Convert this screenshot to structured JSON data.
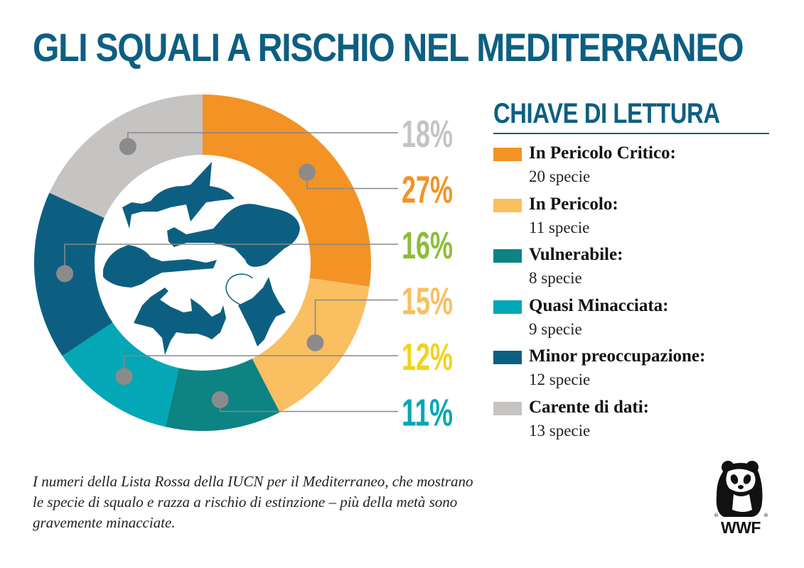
{
  "title": "GLI SQUALI A RISCHIO NEL MEDITERRANEO",
  "legend_title": "CHIAVE DI LETTURA",
  "legend": [
    {
      "label": "In Pericolo Critico:",
      "count": "20 specie",
      "color": "#f39325"
    },
    {
      "label": "In Pericolo:",
      "count": "11 specie",
      "color": "#f9bf60"
    },
    {
      "label": "Vulnerabile:",
      "count": "8 specie",
      "color": "#0d8383"
    },
    {
      "label": "Quasi Minacciata:",
      "count": "9 specie",
      "color": "#04a7b5"
    },
    {
      "label": "Minor preoccupazione:",
      "count": "12 specie",
      "color": "#0d5f82"
    },
    {
      "label": "Carente di dati:",
      "count": "13 specie",
      "color": "#c6c3c3"
    }
  ],
  "caption_lines": [
    "I numeri della Lista Rossa della IUCN per il Mediterraneo, che mostrano",
    "le specie di squalo e razza a rischio di estinzione – più della metà sono",
    "gravemente minacciate."
  ],
  "logo_text": "WWF",
  "colors": {
    "title": "#0d5f82",
    "leader": "#888888",
    "marker": "#8c8b8b",
    "silhouette": "#0d5f82"
  },
  "icons": [
    "shark-silhouette-icon",
    "guitarfish-silhouette-icon",
    "angel-shark-silhouette-icon",
    "hammerhead-silhouette-icon",
    "manta-ray-silhouette-icon",
    "panda-logo-icon"
  ],
  "chart_data": {
    "type": "pie",
    "variant": "donut",
    "start": "top",
    "direction": "clockwise",
    "slices": [
      {
        "name": "In Pericolo Critico",
        "value": 27,
        "label": "27%",
        "color": "#f39325",
        "label_color": "#f39325"
      },
      {
        "name": "In Pericolo",
        "value": 15,
        "label": "15%",
        "color": "#f9bf60",
        "label_color": "#f9bf60"
      },
      {
        "name": "Vulnerabile",
        "value": 11,
        "label": "11%",
        "color": "#0d8383",
        "label_color": "#04a7b5"
      },
      {
        "name": "Quasi Minacciata",
        "value": 12,
        "label": "12%",
        "color": "#04a7b5",
        "label_color": "#f2d31a"
      },
      {
        "name": "Minor preoccupazione",
        "value": 16,
        "label": "16%",
        "color": "#0d5f82",
        "label_color": "#8cbd37"
      },
      {
        "name": "Carente di dati",
        "value": 18,
        "label": "18%",
        "color": "#c6c3c3",
        "label_color": "#c6c3c3"
      }
    ],
    "label_order_top_to_bottom": [
      "Carente di dati",
      "In Pericolo Critico",
      "Minor preoccupazione",
      "In Pericolo",
      "Quasi Minacciata",
      "Vulnerabile"
    ]
  }
}
